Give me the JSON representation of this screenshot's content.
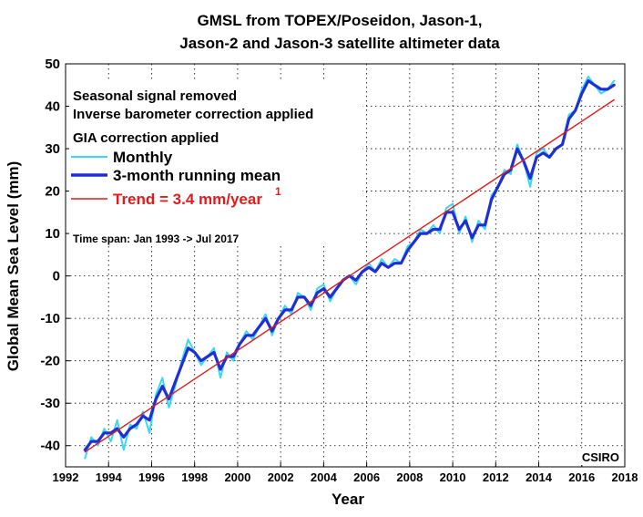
{
  "chart_data": {
    "type": "line",
    "title": [
      "GMSL from TOPEX/Poseidon, Jason-1,",
      "Jason-2 and Jason-3 satellite altimeter data"
    ],
    "xlabel": "Year",
    "ylabel": "Global Mean Sea Level (mm)",
    "xlim": [
      1992,
      2018
    ],
    "ylim": [
      -45,
      50
    ],
    "x_ticks": [
      "1992",
      "1994",
      "1996",
      "1998",
      "2000",
      "2002",
      "2004",
      "2006",
      "2008",
      "2010",
      "2012",
      "2014",
      "2016",
      "2018"
    ],
    "y_ticks": [
      "-40",
      "-30",
      "-20",
      "-10",
      "0",
      "10",
      "20",
      "30",
      "40",
      "50"
    ],
    "grid": "dotted",
    "notes": [
      "Seasonal signal removed",
      "Inverse barometer correction applied",
      "GIA correction applied"
    ],
    "time_span": "Time span: Jan 1993 -> Jul 2017",
    "watermark": "CSIRO",
    "legend": {
      "placement": "top-left",
      "monthly": "Monthly",
      "running_mean": "3-month running mean",
      "trend": "Trend = 3.4 mm/year",
      "trend_superscript": "1"
    },
    "colors": {
      "monthly": "#3ad9ee",
      "running_mean": "#1f2fd6",
      "trend": "#e41a1c"
    },
    "series": [
      {
        "name": "Monthly",
        "x": [
          1992.9,
          1993.2,
          1993.5,
          1993.8,
          1994.1,
          1994.4,
          1994.7,
          1995.0,
          1995.3,
          1995.6,
          1995.9,
          1996.2,
          1996.5,
          1996.8,
          1997.1,
          1997.4,
          1997.7,
          1998.0,
          1998.3,
          1998.6,
          1998.9,
          1999.2,
          1999.5,
          1999.8,
          2000.1,
          2000.4,
          2000.7,
          2001.0,
          2001.3,
          2001.6,
          2001.9,
          2002.2,
          2002.5,
          2002.8,
          2003.1,
          2003.4,
          2003.7,
          2004.0,
          2004.3,
          2004.6,
          2004.9,
          2005.2,
          2005.5,
          2005.8,
          2006.1,
          2006.4,
          2006.7,
          2007.0,
          2007.3,
          2007.6,
          2007.9,
          2008.2,
          2008.5,
          2008.8,
          2009.1,
          2009.4,
          2009.7,
          2010.0,
          2010.3,
          2010.6,
          2010.9,
          2011.2,
          2011.5,
          2011.8,
          2012.1,
          2012.4,
          2012.7,
          2013.0,
          2013.3,
          2013.6,
          2013.9,
          2014.2,
          2014.5,
          2014.8,
          2015.1,
          2015.4,
          2015.7,
          2016.0,
          2016.3,
          2016.6,
          2016.9,
          2017.2,
          2017.5
        ],
        "y": [
          -43,
          -38,
          -40,
          -36,
          -39,
          -34,
          -41,
          -35,
          -36,
          -32,
          -37,
          -28,
          -24,
          -31,
          -26,
          -20,
          -15,
          -18,
          -21,
          -19,
          -17,
          -24,
          -18,
          -20,
          -16,
          -13,
          -15,
          -12,
          -9,
          -14,
          -10,
          -7,
          -9,
          -4,
          -5,
          -8,
          -3,
          -2,
          -6,
          -3,
          -1,
          0,
          -2,
          1,
          3,
          1,
          4,
          2,
          4,
          3,
          7,
          8,
          11,
          10,
          12,
          10,
          16,
          17,
          10,
          14,
          8,
          13,
          11,
          19,
          21,
          25,
          24,
          31,
          27,
          21,
          29,
          30,
          28,
          30,
          31,
          38,
          39,
          44,
          47,
          45,
          43,
          44,
          46
        ]
      },
      {
        "name": "3-month running mean",
        "x": [
          1992.9,
          1993.2,
          1993.5,
          1993.8,
          1994.1,
          1994.4,
          1994.7,
          1995.0,
          1995.3,
          1995.6,
          1995.9,
          1996.2,
          1996.5,
          1996.8,
          1997.1,
          1997.4,
          1997.7,
          1998.0,
          1998.3,
          1998.6,
          1998.9,
          1999.2,
          1999.5,
          1999.8,
          2000.1,
          2000.4,
          2000.7,
          2001.0,
          2001.3,
          2001.6,
          2001.9,
          2002.2,
          2002.5,
          2002.8,
          2003.1,
          2003.4,
          2003.7,
          2004.0,
          2004.3,
          2004.6,
          2004.9,
          2005.2,
          2005.5,
          2005.8,
          2006.1,
          2006.4,
          2006.7,
          2007.0,
          2007.3,
          2007.6,
          2007.9,
          2008.2,
          2008.5,
          2008.8,
          2009.1,
          2009.4,
          2009.7,
          2010.0,
          2010.3,
          2010.6,
          2010.9,
          2011.2,
          2011.5,
          2011.8,
          2012.1,
          2012.4,
          2012.7,
          2013.0,
          2013.3,
          2013.6,
          2013.9,
          2014.2,
          2014.5,
          2014.8,
          2015.1,
          2015.4,
          2015.7,
          2016.0,
          2016.3,
          2016.6,
          2016.9,
          2017.2,
          2017.5
        ],
        "y": [
          -41,
          -39,
          -39,
          -37,
          -37,
          -36,
          -38,
          -36,
          -35,
          -33,
          -34,
          -29,
          -26,
          -29,
          -25,
          -21,
          -17,
          -18,
          -20,
          -19,
          -18,
          -22,
          -19,
          -19,
          -16,
          -14,
          -14,
          -12,
          -10,
          -13,
          -10,
          -8,
          -8,
          -5,
          -5,
          -7,
          -4,
          -3,
          -5,
          -3,
          -1,
          0,
          -1,
          1,
          2,
          1,
          3,
          2,
          3,
          3,
          6,
          8,
          10,
          10,
          11,
          11,
          15,
          15,
          11,
          13,
          9,
          12,
          12,
          18,
          21,
          24,
          25,
          30,
          27,
          23,
          28,
          29,
          28,
          30,
          31,
          37,
          39,
          43,
          46,
          45,
          44,
          44,
          45
        ]
      },
      {
        "name": "Trend = 3.4 mm/year",
        "x": [
          1992.9,
          2017.5
        ],
        "y": [
          -41.5,
          41.5
        ]
      }
    ]
  }
}
